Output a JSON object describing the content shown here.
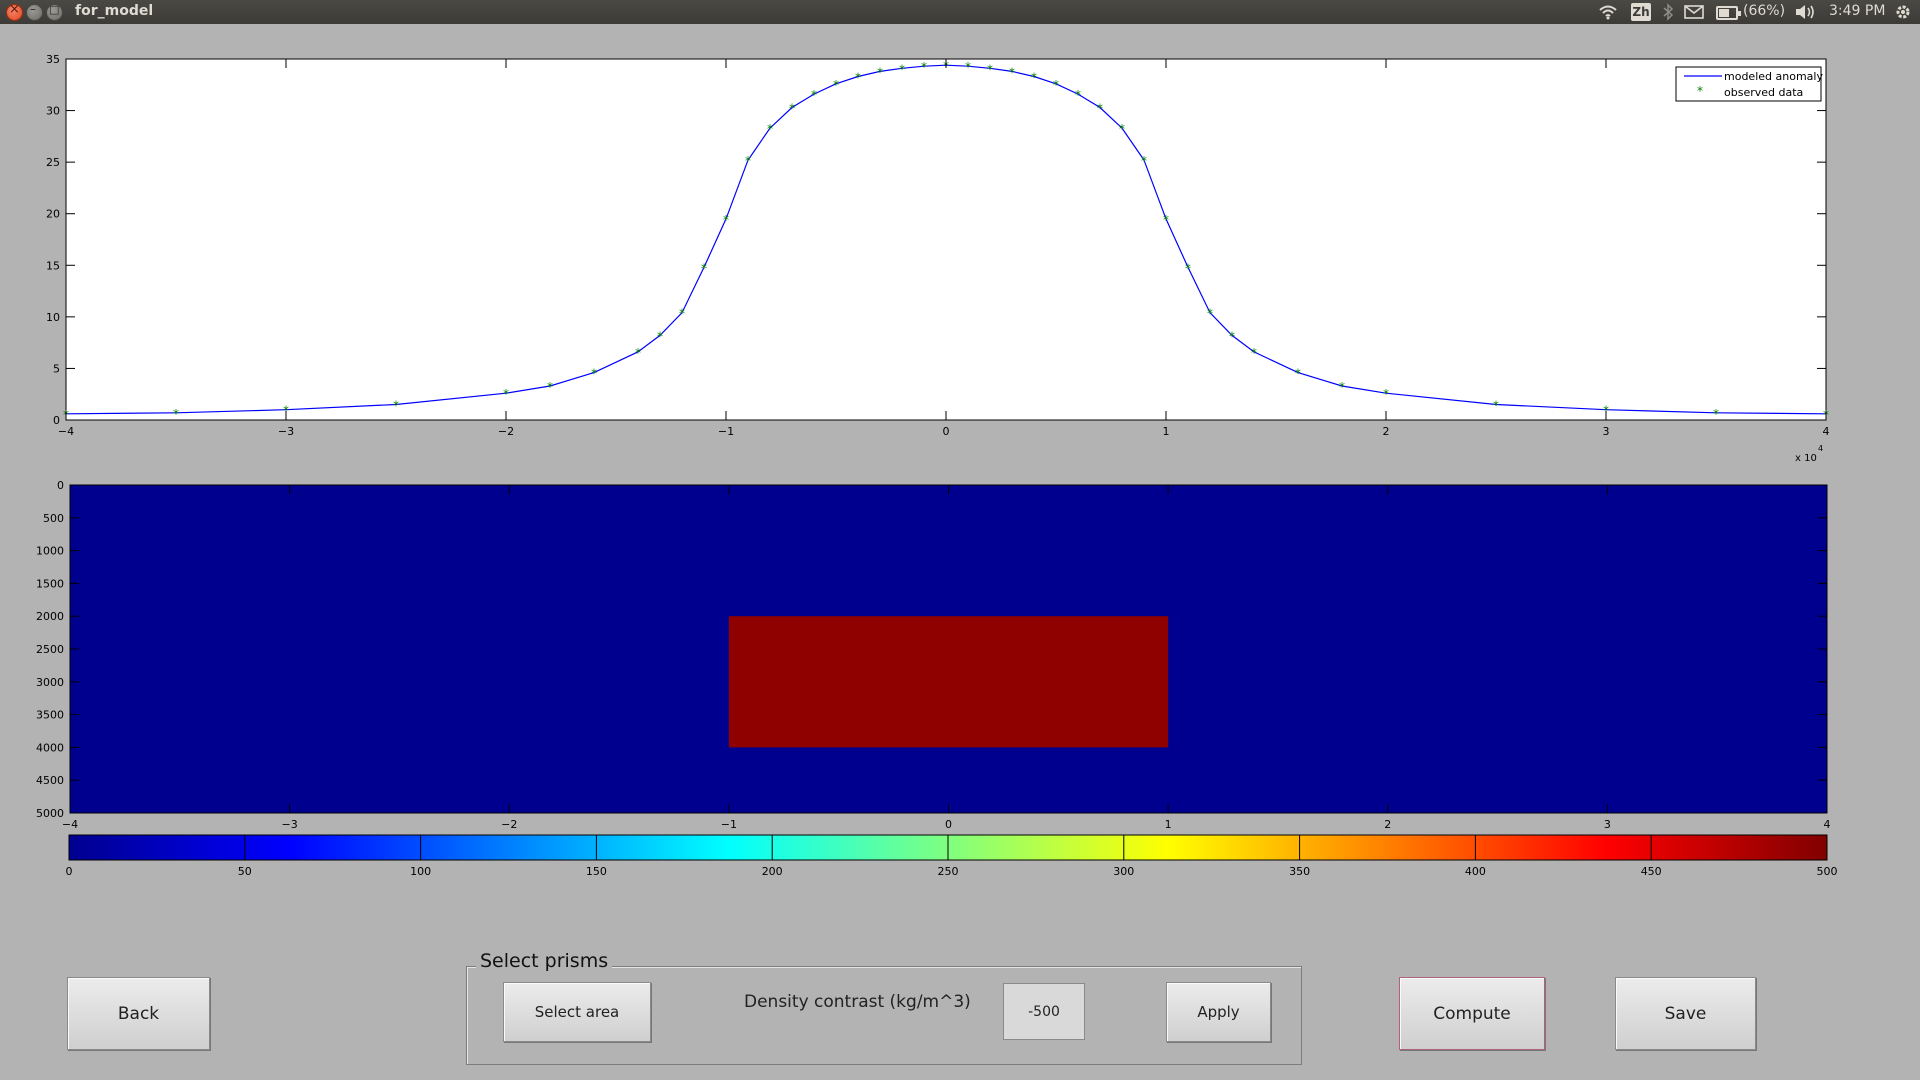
{
  "window": {
    "title": "for_model"
  },
  "tray": {
    "ime": "Zh",
    "battery": "(66%)",
    "time": "3:49 PM"
  },
  "icons": {
    "close": "close-icon",
    "minimize": "minimize-icon",
    "maximize": "maximize-icon",
    "wifi": "wifi-icon",
    "bluetooth": "bluetooth-icon",
    "mail": "mail-icon",
    "battery": "battery-icon",
    "volume": "volume-icon",
    "gear": "gear-icon"
  },
  "chart_data": [
    {
      "type": "line",
      "xlim": [
        -4,
        4
      ],
      "ylim": [
        0,
        35
      ],
      "xticks": [
        "-4",
        "-3",
        "-2",
        "-1",
        "0",
        "1",
        "2",
        "3",
        "4"
      ],
      "yticks": [
        "0",
        "5",
        "10",
        "15",
        "20",
        "25",
        "30",
        "35"
      ],
      "x_exponent": "x 10",
      "x_exponent_power": "4",
      "legend": {
        "placement": "top-right",
        "entries": [
          "modeled anomaly",
          "observed data"
        ]
      },
      "series": [
        {
          "name": "modeled anomaly",
          "color": "#0000ff",
          "style": "line",
          "x": [
            -4,
            -3.5,
            -3,
            -2.5,
            -2,
            -1.8,
            -1.6,
            -1.4,
            -1.3,
            -1.2,
            -1.1,
            -1.0,
            -0.9,
            -0.8,
            -0.7,
            -0.6,
            -0.5,
            -0.4,
            -0.3,
            -0.2,
            -0.1,
            0,
            0.1,
            0.2,
            0.3,
            0.4,
            0.5,
            0.6,
            0.7,
            0.8,
            0.9,
            1.0,
            1.1,
            1.2,
            1.3,
            1.4,
            1.6,
            1.8,
            2,
            2.5,
            3,
            3.5,
            4
          ],
          "y": [
            0.6,
            0.7,
            1.0,
            1.5,
            2.6,
            3.3,
            4.6,
            6.6,
            8.2,
            10.4,
            14.8,
            19.5,
            25.2,
            28.3,
            30.3,
            31.6,
            32.6,
            33.3,
            33.8,
            34.1,
            34.3,
            34.4,
            34.3,
            34.1,
            33.8,
            33.3,
            32.6,
            31.6,
            30.3,
            28.3,
            25.2,
            19.5,
            14.8,
            10.4,
            8.2,
            6.6,
            4.6,
            3.3,
            2.6,
            1.5,
            1.0,
            0.7,
            0.6
          ]
        },
        {
          "name": "observed data",
          "color": "#008000",
          "style": "markers",
          "x": [
            -4,
            -3.5,
            -3,
            -2.5,
            -2,
            -1.8,
            -1.6,
            -1.4,
            -1.3,
            -1.2,
            -1.1,
            -1.0,
            -0.9,
            -0.8,
            -0.7,
            -0.6,
            -0.5,
            -0.4,
            -0.3,
            -0.2,
            -0.1,
            0,
            0.1,
            0.2,
            0.3,
            0.4,
            0.5,
            0.6,
            0.7,
            0.8,
            0.9,
            1.0,
            1.1,
            1.2,
            1.3,
            1.4,
            1.6,
            1.8,
            2,
            2.5,
            3,
            3.5,
            4
          ],
          "y": [
            0.6,
            0.7,
            1.0,
            1.5,
            2.6,
            3.3,
            4.6,
            6.6,
            8.2,
            10.4,
            14.8,
            19.5,
            25.2,
            28.3,
            30.3,
            31.6,
            32.6,
            33.3,
            33.8,
            34.1,
            34.3,
            34.4,
            34.3,
            34.1,
            33.8,
            33.3,
            32.6,
            31.6,
            30.3,
            28.3,
            25.2,
            19.5,
            14.8,
            10.4,
            8.2,
            6.6,
            4.6,
            3.3,
            2.6,
            1.5,
            1.0,
            0.7,
            0.6
          ]
        }
      ]
    },
    {
      "type": "heatmap",
      "xlim": [
        -4,
        4
      ],
      "ylim": [
        0,
        5000
      ],
      "y_reversed": true,
      "xticks": [
        "-4",
        "-3",
        "-2",
        "-1",
        "0",
        "1",
        "2",
        "3",
        "4"
      ],
      "yticks": [
        "0",
        "500",
        "1000",
        "1500",
        "2000",
        "2500",
        "3000",
        "3500",
        "4000",
        "4500",
        "5000"
      ],
      "background_value": 0,
      "prisms": [
        {
          "x_range": [
            -1,
            1
          ],
          "depth_range": [
            2000,
            4000
          ],
          "value": 500
        }
      ],
      "colors": {
        "low": "#00008f",
        "high": "#8f0000"
      }
    },
    {
      "type": "colorbar",
      "range": [
        0,
        500
      ],
      "ticks": [
        "0",
        "50",
        "100",
        "150",
        "200",
        "250",
        "300",
        "350",
        "400",
        "450",
        "500"
      ],
      "colormap": "jet"
    }
  ],
  "controls": {
    "back": "Back",
    "select_prisms_title": "Select prisms",
    "select_area": "Select area",
    "density_label": "Density contrast (kg/m^3)",
    "density_value": "-500",
    "apply": "Apply",
    "compute": "Compute",
    "save": "Save"
  }
}
